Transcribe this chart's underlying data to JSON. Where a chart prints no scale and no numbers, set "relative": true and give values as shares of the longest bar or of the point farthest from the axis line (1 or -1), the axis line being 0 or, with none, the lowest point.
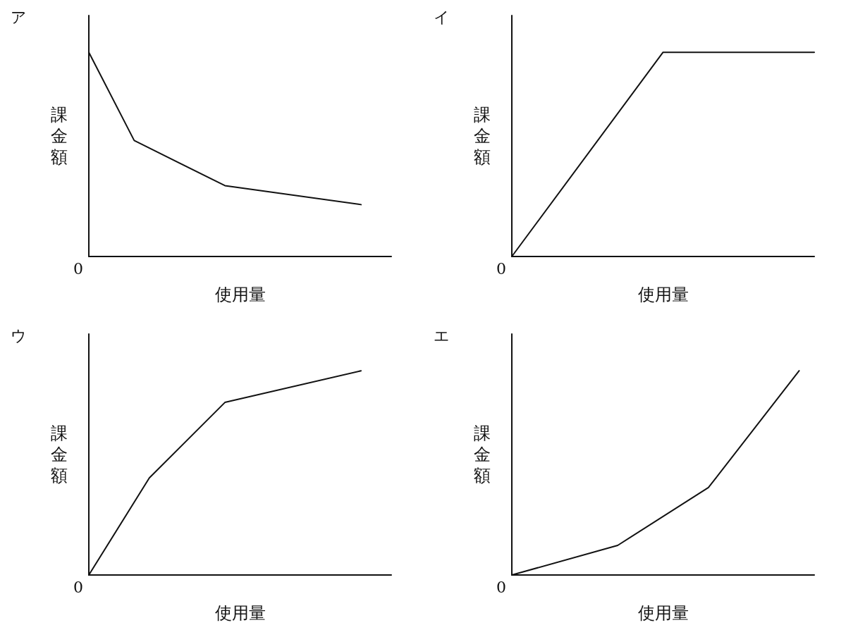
{
  "chart_data": [
    {
      "type": "line",
      "title": "ア",
      "xlabel": "使用量",
      "ylabel": "課金額",
      "relative": true,
      "annotations": [
        "0"
      ],
      "marker": "none",
      "line_style": "solid",
      "grid": false,
      "categories": [
        null,
        null,
        null,
        null,
        null,
        null,
        null,
        null,
        null,
        null,
        null,
        null,
        null,
        null,
        null,
        null,
        null,
        null,
        null,
        null,
        null
      ],
      "series": [
        {
          "color": "#111111",
          "values": [
            1,
            null,
            null,
            0.568,
            null,
            null,
            null,
            null,
            null,
            0.347,
            null,
            null,
            null,
            null,
            null,
            null,
            null,
            null,
            0.254,
            null,
            null
          ]
        }
      ]
    },
    {
      "type": "line",
      "title": "イ",
      "xlabel": "使用量",
      "ylabel": "課金額",
      "relative": true,
      "annotations": [
        "0"
      ],
      "marker": "none",
      "line_style": "solid",
      "grid": false,
      "categories": [
        null,
        null,
        null,
        null,
        null,
        null,
        null,
        null,
        null,
        null,
        null,
        null,
        null,
        null,
        null,
        null,
        null,
        null,
        null,
        null,
        null
      ],
      "series": [
        {
          "color": "#111111",
          "values": [
            0,
            null,
            null,
            null,
            null,
            null,
            null,
            null,
            null,
            null,
            1,
            null,
            null,
            null,
            null,
            null,
            null,
            null,
            null,
            null,
            1
          ]
        }
      ]
    },
    {
      "type": "line",
      "title": "ウ",
      "xlabel": "使用量",
      "ylabel": "課金額",
      "relative": true,
      "annotations": [
        "0"
      ],
      "marker": "none",
      "line_style": "solid",
      "grid": false,
      "categories": [
        null,
        null,
        null,
        null,
        null,
        null,
        null,
        null,
        null,
        null,
        null,
        null,
        null,
        null,
        null,
        null,
        null,
        null,
        null,
        null,
        null
      ],
      "series": [
        {
          "color": "#111111",
          "values": [
            0,
            null,
            null,
            null,
            0.475,
            null,
            null,
            null,
            null,
            0.845,
            null,
            null,
            null,
            null,
            null,
            null,
            null,
            null,
            1,
            null,
            null
          ]
        }
      ]
    },
    {
      "type": "line",
      "title": "エ",
      "xlabel": "使用量",
      "ylabel": "課金額",
      "relative": true,
      "annotations": [
        "0"
      ],
      "marker": "none",
      "line_style": "solid",
      "grid": false,
      "categories": [
        null,
        null,
        null,
        null,
        null,
        null,
        null,
        null,
        null,
        null,
        null,
        null,
        null,
        null,
        null,
        null,
        null,
        null,
        null,
        null,
        null
      ],
      "series": [
        {
          "color": "#111111",
          "values": [
            0,
            null,
            null,
            null,
            null,
            null,
            null,
            0.145,
            null,
            null,
            null,
            null,
            null,
            0.428,
            null,
            null,
            null,
            null,
            null,
            1,
            null
          ]
        }
      ]
    }
  ]
}
